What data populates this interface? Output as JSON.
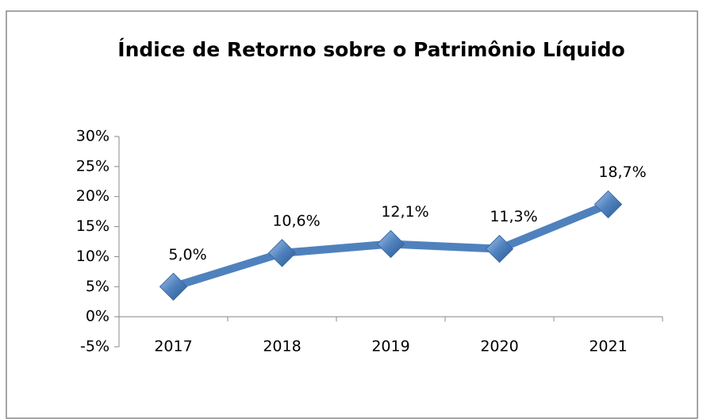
{
  "chart_data": {
    "type": "line",
    "title": "Índice de Retorno sobre o Patrimônio Líquido",
    "categories": [
      "2017",
      "2018",
      "2019",
      "2020",
      "2021"
    ],
    "series": [
      {
        "color": "#4f81bd",
        "values": [
          5.0,
          10.6,
          12.1,
          11.3,
          18.7
        ],
        "value_labels": [
          "5,0%",
          "10,6%",
          "12,1%",
          "11,3%",
          "18,7%"
        ]
      }
    ],
    "ylim": [
      -5,
      30
    ],
    "yticks": [
      {
        "value": -5,
        "label": "-5%"
      },
      {
        "value": 0,
        "label": "0%"
      },
      {
        "value": 5,
        "label": "5%"
      },
      {
        "value": 10,
        "label": "10%"
      },
      {
        "value": 15,
        "label": "15%"
      },
      {
        "value": 20,
        "label": "20%"
      },
      {
        "value": 25,
        "label": "25%"
      },
      {
        "value": 30,
        "label": "30%"
      }
    ],
    "grid": false
  }
}
